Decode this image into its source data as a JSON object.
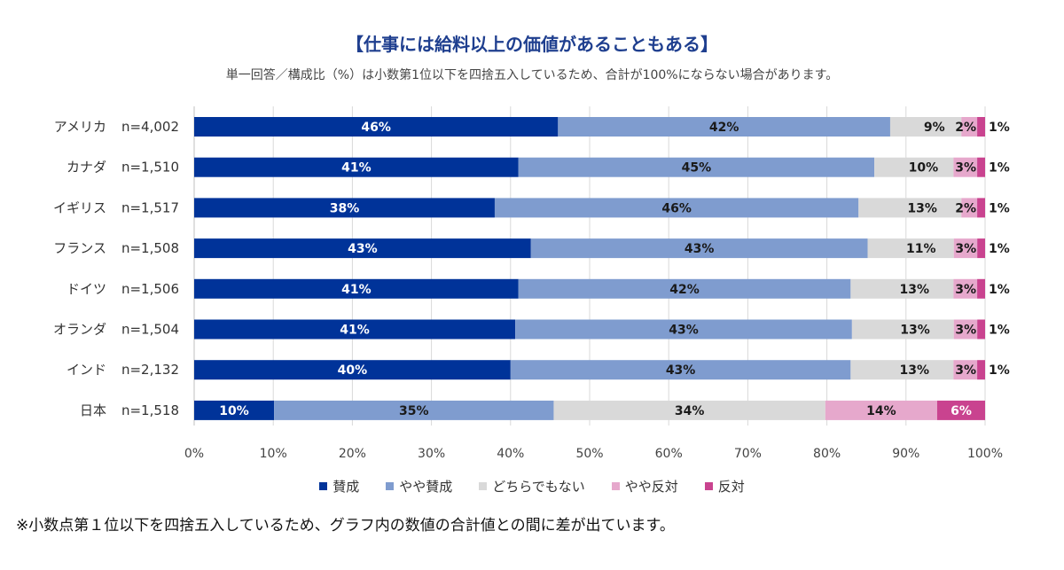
{
  "title": "【仕事には給料以上の価値があることもある】",
  "subtitle": "単一回答／構成比（%）は小数第1位以下を四捨五入しているため、合計が100%にならない場合があります。",
  "footnote": "※小数点第１位以下を四捨五入しているため、グラフ内の数値の合計値との間に差が出ています。",
  "colors": {
    "agree": "#003399",
    "somewhat_agree": "#7f9ccf",
    "neutral": "#d9d9d9",
    "somewhat_disagree": "#e6a8cc",
    "disagree": "#c9438f"
  },
  "chart_data": {
    "type": "bar",
    "orientation": "horizontal",
    "stacked": true,
    "categories": [
      "アメリカ",
      "カナダ",
      "イギリス",
      "フランス",
      "ドイツ",
      "オランダ",
      "インド",
      "日本"
    ],
    "sample_sizes": [
      "n=4,002",
      "n=1,510",
      "n=1,517",
      "n=1,508",
      "n=1,506",
      "n=1,504",
      "n=2,132",
      "n=1,518"
    ],
    "series": [
      {
        "name": "賛成",
        "values": [
          46,
          41,
          38,
          43,
          41,
          41,
          40,
          10
        ]
      },
      {
        "name": "やや賛成",
        "values": [
          42,
          45,
          46,
          43,
          42,
          43,
          43,
          35
        ]
      },
      {
        "name": "どちらでもない",
        "values": [
          9,
          10,
          13,
          11,
          13,
          13,
          13,
          34
        ]
      },
      {
        "name": "やや反対",
        "values": [
          2,
          3,
          2,
          3,
          3,
          3,
          3,
          14
        ]
      },
      {
        "name": "反対",
        "values": [
          1,
          1,
          1,
          1,
          1,
          1,
          1,
          6
        ]
      }
    ],
    "xlim": [
      0,
      100
    ],
    "xticks": [
      "0%",
      "10%",
      "20%",
      "30%",
      "40%",
      "50%",
      "60%",
      "70%",
      "80%",
      "90%",
      "100%"
    ],
    "grid": true,
    "legend_position": "bottom"
  }
}
